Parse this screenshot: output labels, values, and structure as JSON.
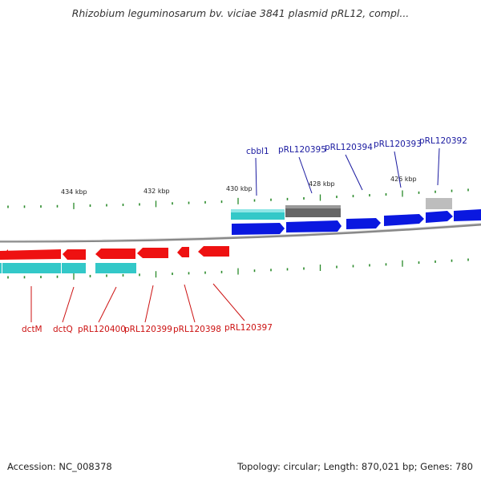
{
  "title": "Rhizobium leguminosarum bv. viciae 3841 plasmid pRL12, compl...",
  "footer": {
    "accession": "Accession: NC_008378",
    "info": "Topology: circular; Length: 870,021 bp; Genes: 780"
  },
  "colors": {
    "forward_gene": "#0a18e0",
    "reverse_gene": "#ee1111",
    "cds_band": "#33c8c8",
    "dark_feature": "#666666",
    "light_feature": "#bdbdbd",
    "backbone": "#888888",
    "tick": "#2a8a2a",
    "forward_label": "#1a1aa0",
    "reverse_label": "#cc1111"
  },
  "tick_labels": [
    "434 kbp",
    "432 kbp",
    "430 kbp",
    "428 kbp",
    "426 kbp"
  ],
  "forward_labels": [
    "cbbl1",
    "pRL120395",
    "pRL120394",
    "pRL120393",
    "pRL120392"
  ],
  "reverse_labels": [
    "dctM",
    "dctQ",
    "pRL120400",
    "pRL120399",
    "pRL120398",
    "pRL120397"
  ]
}
